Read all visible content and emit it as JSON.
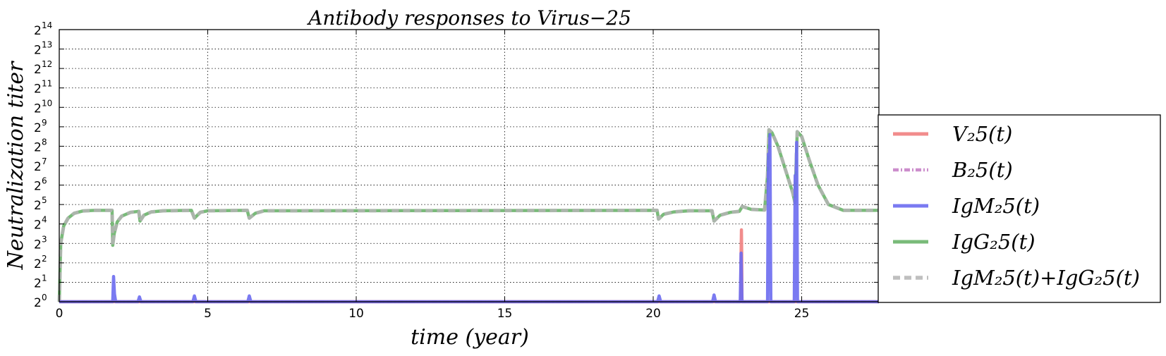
{
  "chart_data": {
    "type": "line",
    "title": "Antibody responses to Virus−25",
    "xlabel": "time (year)",
    "ylabel": "Neutralization  titer",
    "xlim": [
      0,
      27.6
    ],
    "ylim_log2": [
      0,
      14
    ],
    "y_scale": "log2",
    "grid": true,
    "legend_position": "right (outside plot)",
    "x_ticks": [
      "0",
      "5",
      "10",
      "15",
      "20",
      "25"
    ],
    "x_tick_values": [
      0,
      5,
      10,
      15,
      20,
      25
    ],
    "y_ticks": [
      {
        "base": "2",
        "exp": "0"
      },
      {
        "base": "2",
        "exp": "1"
      },
      {
        "base": "2",
        "exp": "2"
      },
      {
        "base": "2",
        "exp": "3"
      },
      {
        "base": "2",
        "exp": "4"
      },
      {
        "base": "2",
        "exp": "5"
      },
      {
        "base": "2",
        "exp": "6"
      },
      {
        "base": "2",
        "exp": "7"
      },
      {
        "base": "2",
        "exp": "8"
      },
      {
        "base": "2",
        "exp": "9"
      },
      {
        "base": "2",
        "exp": "10"
      },
      {
        "base": "2",
        "exp": "11"
      },
      {
        "base": "2",
        "exp": "12"
      },
      {
        "base": "2",
        "exp": "13"
      },
      {
        "base": "2",
        "exp": "14"
      }
    ],
    "series": [
      {
        "name": "V_2 5(t)",
        "legend_label": "V₂5(t)",
        "color": "#f07f7f",
        "style": "solid",
        "x": [
          0,
          22.95,
          22.96,
          22.97,
          22.98,
          22.99,
          27.6
        ],
        "y_log2": [
          0,
          0,
          2.5,
          3.7,
          2.5,
          0,
          0
        ]
      },
      {
        "name": "B_2 5(t)",
        "legend_label": "B₂5(t)",
        "color": "#bf70bf",
        "style": "dashdot",
        "x": [
          0,
          27.6
        ],
        "y_log2": [
          0,
          0
        ]
      },
      {
        "name": "IgM_2 5(t)",
        "legend_label": "IgM₂5(t)",
        "color": "#6b6bef",
        "style": "solid",
        "x": [
          0,
          1.8,
          1.83,
          1.86,
          1.9,
          2.65,
          2.7,
          2.75,
          4.5,
          4.55,
          4.6,
          6.35,
          6.4,
          6.45,
          20.15,
          20.2,
          20.25,
          22.0,
          22.05,
          22.1,
          22.93,
          22.96,
          22.99,
          23.85,
          23.88,
          23.9,
          23.93,
          23.96,
          24.75,
          24.78,
          24.8,
          24.83,
          24.86,
          27.6
        ],
        "y_log2": [
          0,
          0,
          1.3,
          0.4,
          0,
          0,
          0.25,
          0,
          0,
          0.3,
          0,
          0,
          0.3,
          0,
          0,
          0.3,
          0,
          0,
          0.35,
          0,
          0,
          2.5,
          0,
          0,
          7.6,
          5.5,
          8.6,
          0,
          0,
          6.5,
          5.0,
          8.2,
          0,
          0
        ]
      },
      {
        "name": "IgG_2 5(t)",
        "legend_label": "IgG₂5(t)",
        "color": "#6ab46a",
        "style": "solid",
        "x": [
          0,
          0.05,
          0.15,
          0.3,
          0.5,
          0.8,
          1.2,
          1.78,
          1.8,
          1.85,
          1.95,
          2.1,
          2.4,
          2.68,
          2.72,
          2.85,
          3.1,
          3.5,
          4.45,
          4.55,
          4.75,
          5.0,
          6.33,
          6.4,
          6.6,
          6.9,
          20.13,
          20.18,
          20.35,
          20.7,
          21.2,
          21.98,
          22.05,
          22.25,
          22.6,
          22.9,
          23.0,
          23.3,
          23.75,
          23.85,
          23.9,
          24.0,
          24.2,
          24.45,
          24.7,
          24.77,
          24.85,
          25.0,
          25.25,
          25.55,
          25.9,
          26.4,
          27.6
        ],
        "y_log2": [
          0,
          3.0,
          3.9,
          4.3,
          4.55,
          4.67,
          4.7,
          4.7,
          2.9,
          3.5,
          4.1,
          4.4,
          4.6,
          4.65,
          4.15,
          4.45,
          4.62,
          4.68,
          4.7,
          4.3,
          4.6,
          4.68,
          4.7,
          4.3,
          4.55,
          4.68,
          4.7,
          4.25,
          4.5,
          4.62,
          4.68,
          4.68,
          4.15,
          4.45,
          4.6,
          4.65,
          4.9,
          4.75,
          4.72,
          6.5,
          8.85,
          8.7,
          8.0,
          6.8,
          5.6,
          5.1,
          8.75,
          8.5,
          7.3,
          6.0,
          5.0,
          4.7,
          4.7
        ]
      },
      {
        "name": "IgM_2 5(t)+IgG_2 5(t)",
        "legend_label": "IgM₂5(t)+IgG₂5(t)",
        "color": "#b4b4b4",
        "style": "dashed",
        "x": [
          0,
          0.05,
          0.15,
          0.3,
          0.5,
          0.8,
          1.2,
          1.78,
          1.8,
          1.85,
          1.95,
          2.1,
          2.4,
          2.68,
          2.72,
          2.85,
          3.1,
          3.5,
          4.45,
          4.55,
          4.75,
          5.0,
          6.33,
          6.4,
          6.6,
          6.9,
          20.13,
          20.18,
          20.35,
          20.7,
          21.2,
          21.98,
          22.05,
          22.25,
          22.6,
          22.9,
          23.0,
          23.3,
          23.75,
          23.85,
          23.9,
          24.0,
          24.2,
          24.45,
          24.7,
          24.77,
          24.85,
          25.0,
          25.25,
          25.55,
          25.9,
          26.4,
          27.6
        ],
        "y_log2": [
          0,
          3.0,
          3.9,
          4.3,
          4.55,
          4.67,
          4.7,
          4.7,
          2.9,
          3.5,
          4.1,
          4.4,
          4.6,
          4.65,
          4.15,
          4.45,
          4.62,
          4.68,
          4.7,
          4.3,
          4.6,
          4.68,
          4.7,
          4.3,
          4.55,
          4.68,
          4.7,
          4.25,
          4.5,
          4.62,
          4.68,
          4.68,
          4.15,
          4.45,
          4.6,
          4.65,
          4.9,
          4.75,
          4.72,
          6.5,
          8.85,
          8.7,
          8.0,
          6.8,
          5.6,
          5.1,
          8.75,
          8.5,
          7.3,
          6.0,
          5.0,
          4.7,
          4.7
        ]
      }
    ]
  }
}
